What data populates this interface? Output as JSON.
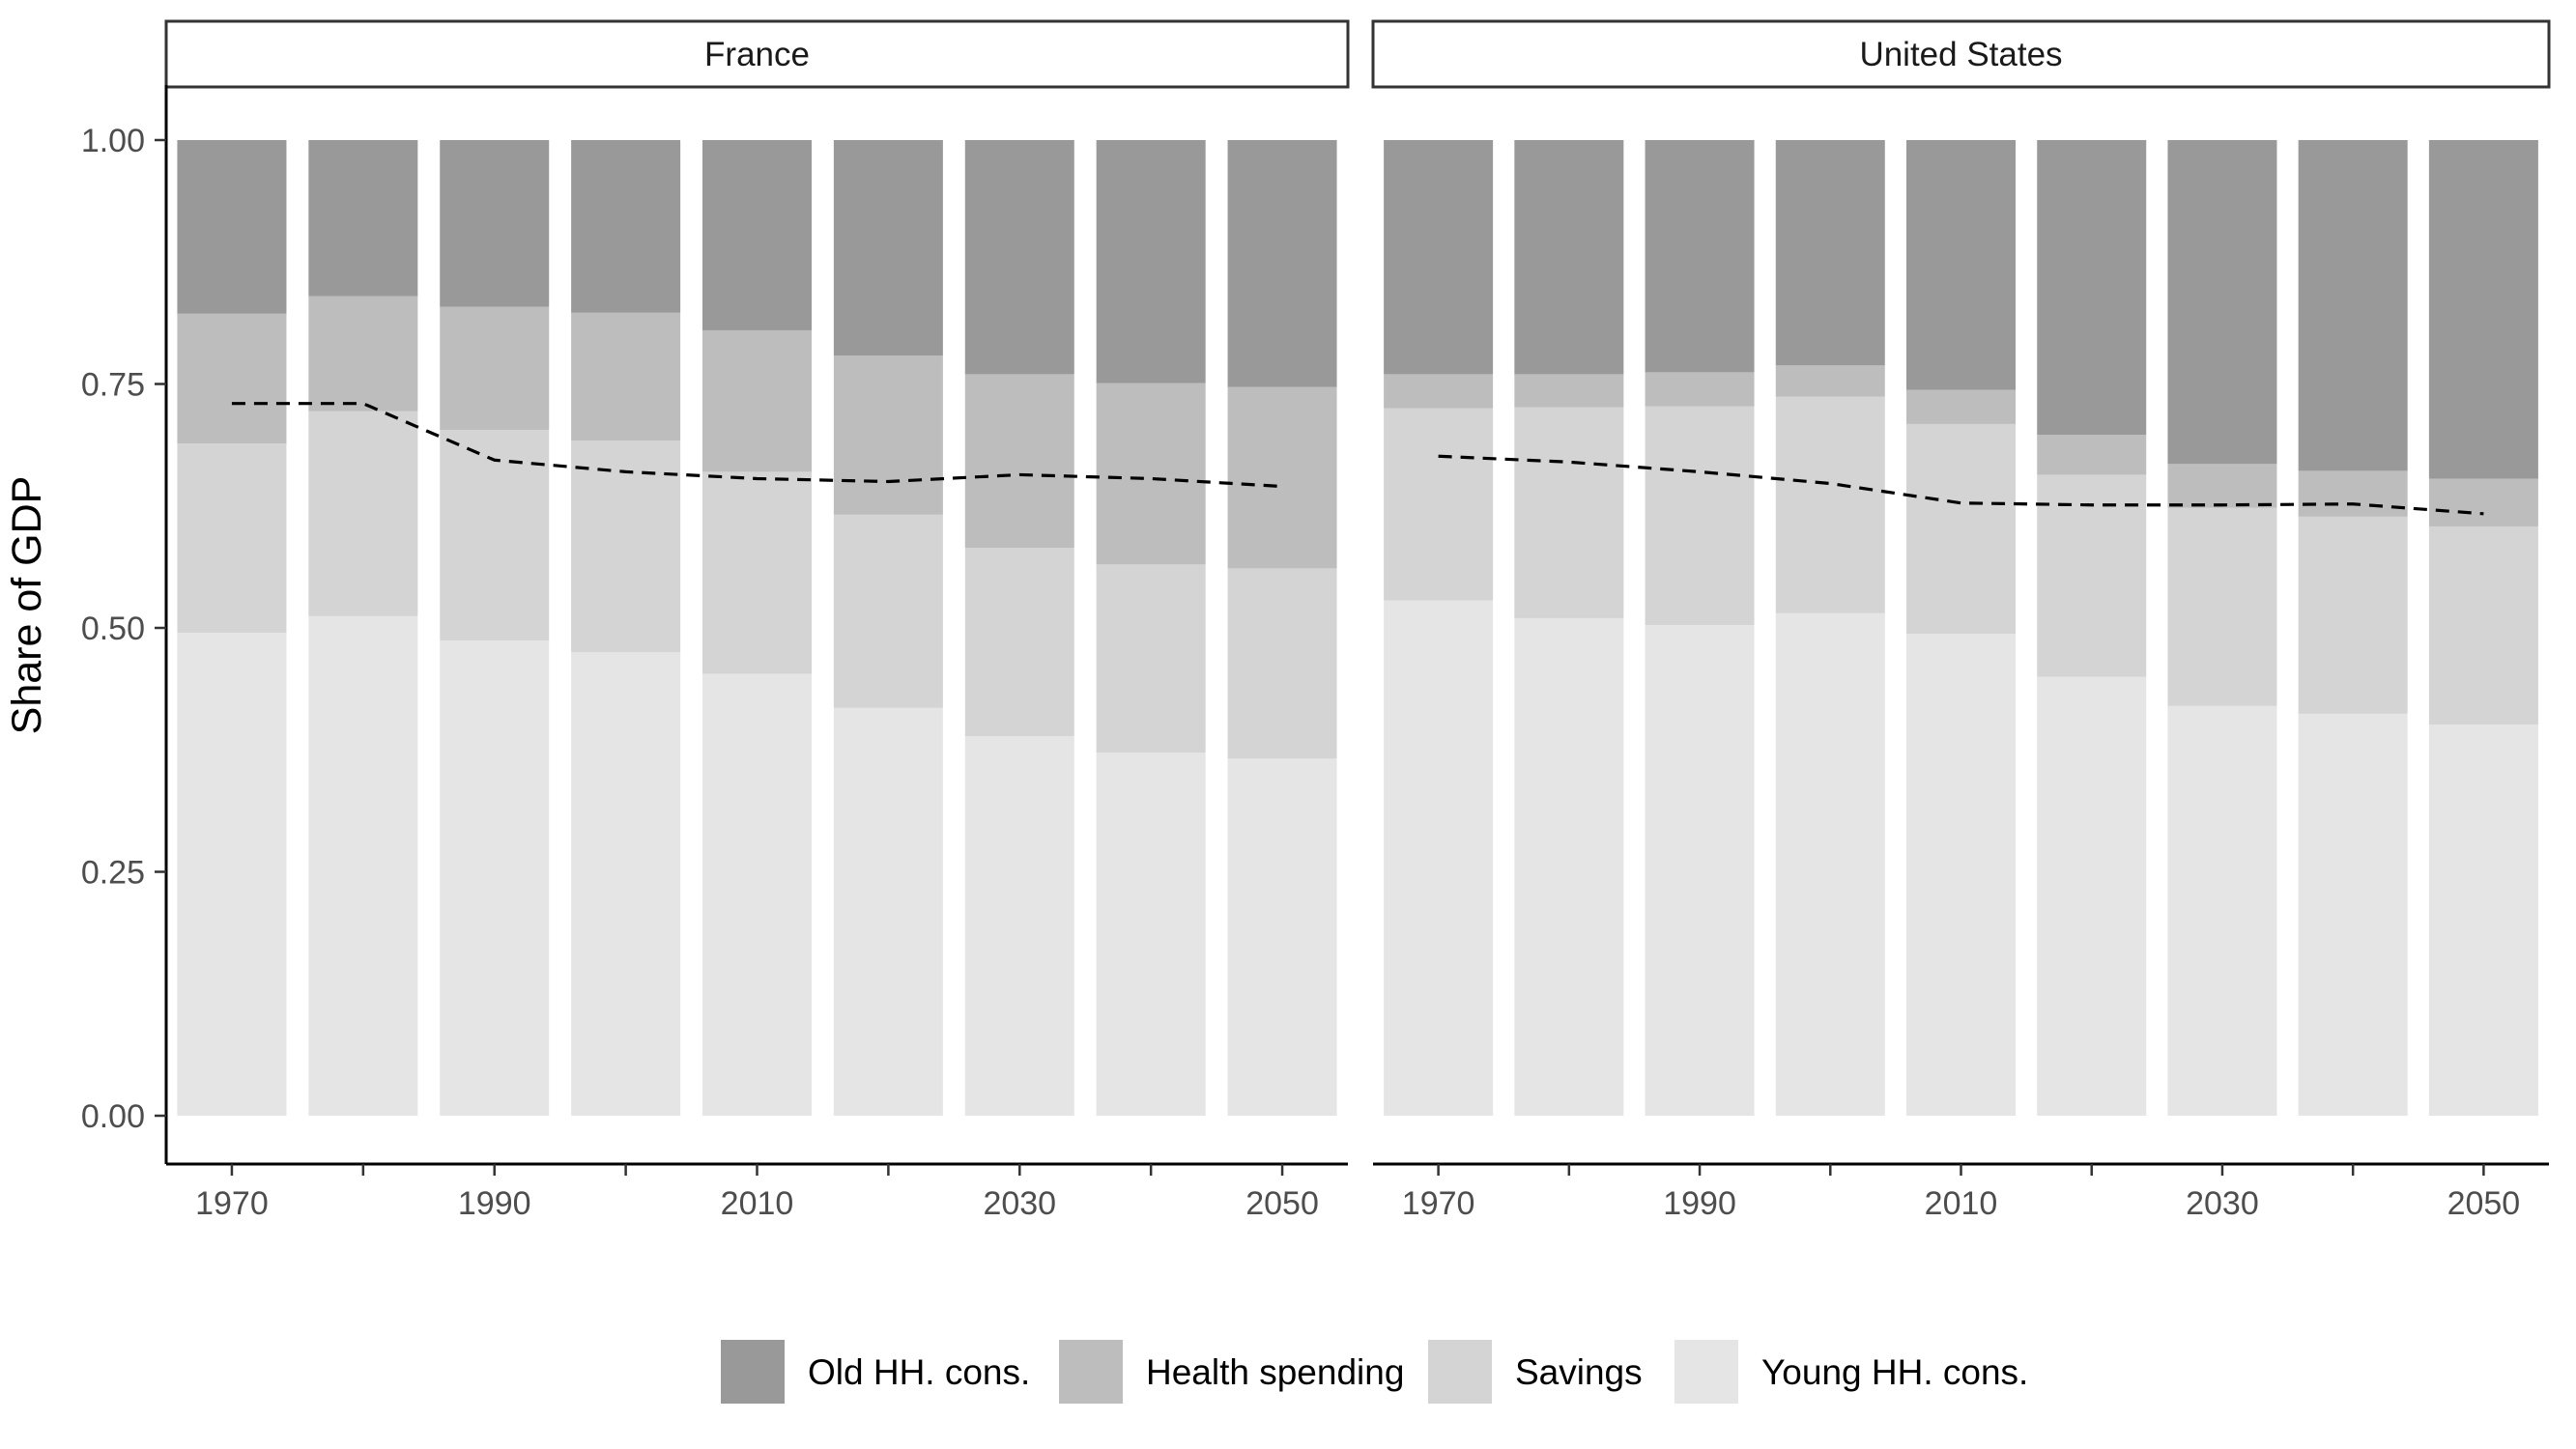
{
  "chart_data": {
    "type": "bar",
    "stacked": true,
    "ylabel": "Share of GDP",
    "xlabel": "",
    "ylim": [
      0,
      1
    ],
    "yticks": [
      "0.00",
      "0.25",
      "0.50",
      "0.75",
      "1.00"
    ],
    "xticks": [
      1970,
      1990,
      2010,
      2030,
      2050
    ],
    "x": [
      1970,
      1980,
      1990,
      2000,
      2010,
      2020,
      2030,
      2040,
      2050
    ],
    "legend_position": "bottom",
    "legend": [
      {
        "name": "Old HH. cons.",
        "color": "#999999"
      },
      {
        "name": "Health spending",
        "color": "#bdbdbd"
      },
      {
        "name": "Savings",
        "color": "#d4d4d4"
      },
      {
        "name": "Young HH. cons.",
        "color": "#e5e5e5"
      }
    ],
    "panels": [
      {
        "strip": "France",
        "young": [
          0.495,
          0.512,
          0.487,
          0.475,
          0.453,
          0.418,
          0.389,
          0.372,
          0.366
        ],
        "savings": [
          0.194,
          0.21,
          0.216,
          0.217,
          0.207,
          0.198,
          0.193,
          0.193,
          0.195
        ],
        "health": [
          0.133,
          0.118,
          0.126,
          0.131,
          0.145,
          0.163,
          0.178,
          0.186,
          0.186
        ],
        "old": [
          0.178,
          0.16,
          0.171,
          0.177,
          0.195,
          0.221,
          0.24,
          0.249,
          0.253
        ],
        "dashed": [
          0.73,
          0.73,
          0.672,
          0.66,
          0.653,
          0.65,
          0.657,
          0.653,
          0.645
        ]
      },
      {
        "strip": "United States",
        "young": [
          0.528,
          0.51,
          0.503,
          0.515,
          0.494,
          0.45,
          0.42,
          0.412,
          0.401
        ],
        "savings": [
          0.197,
          0.216,
          0.224,
          0.222,
          0.215,
          0.207,
          0.203,
          0.202,
          0.203
        ],
        "health": [
          0.035,
          0.034,
          0.035,
          0.032,
          0.035,
          0.041,
          0.045,
          0.047,
          0.049
        ],
        "old": [
          0.24,
          0.24,
          0.238,
          0.231,
          0.256,
          0.302,
          0.332,
          0.339,
          0.347
        ],
        "dashed": [
          0.676,
          0.67,
          0.66,
          0.648,
          0.628,
          0.626,
          0.626,
          0.627,
          0.617
        ]
      }
    ]
  }
}
